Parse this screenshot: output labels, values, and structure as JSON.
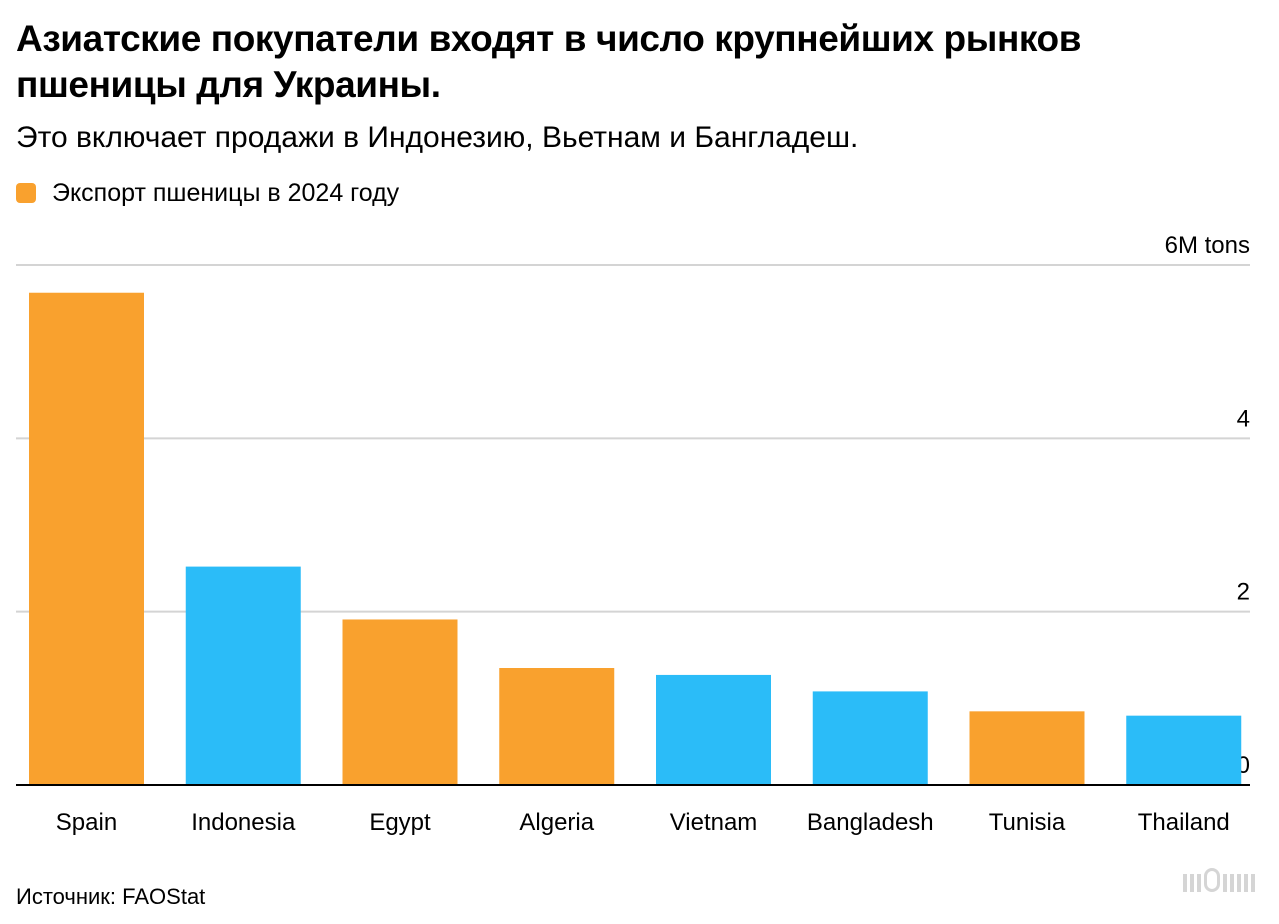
{
  "title": "Азиатские покупатели входят в число крупнейших рынков пшеницы для Украины.",
  "subtitle": "Это включает продажи в Индонезию, Вьетнам и Бангладеш.",
  "legend": {
    "label": "Экспорт пшеницы в 2024 году",
    "color": "#F9A12E"
  },
  "source": "Источник: FAOStat",
  "colors": {
    "orange": "#F9A12E",
    "blue": "#2BBCF8",
    "grid": "#d4d4d4",
    "axis": "#000000"
  },
  "chart_data": {
    "type": "bar",
    "categories": [
      "Spain",
      "Indonesia",
      "Egypt",
      "Algeria",
      "Vietnam",
      "Bangladesh",
      "Tunisia",
      "Thailand"
    ],
    "values": [
      5.68,
      2.52,
      1.91,
      1.35,
      1.27,
      1.08,
      0.85,
      0.8
    ],
    "bar_colors": [
      "#F9A12E",
      "#2BBCF8",
      "#F9A12E",
      "#F9A12E",
      "#2BBCF8",
      "#2BBCF8",
      "#F9A12E",
      "#2BBCF8"
    ],
    "ylim": [
      0,
      6
    ],
    "yticks": [
      0,
      2,
      4,
      6
    ],
    "ytick_labels": [
      "0",
      "2",
      "4",
      "6M tons"
    ],
    "xlabel": "",
    "ylabel": "",
    "grid": true,
    "legend_position": "top-left"
  }
}
